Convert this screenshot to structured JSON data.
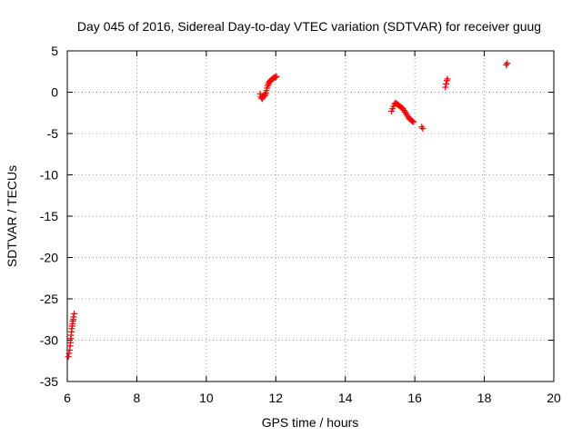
{
  "chart_data": {
    "type": "scatter",
    "title": "Day 045 of 2016, Sidereal Day-to-day VTEC variation (SDTVAR) for receiver guug",
    "xlabel": "GPS time / hours",
    "ylabel": "SDTVAR / TECUs",
    "xlim": [
      6,
      20
    ],
    "ylim": [
      -35,
      5
    ],
    "xticks": [
      6,
      8,
      10,
      12,
      14,
      16,
      18,
      20
    ],
    "yticks": [
      5,
      0,
      -5,
      -10,
      -15,
      -20,
      -25,
      -30,
      -35
    ],
    "xtick_labels": [
      "6",
      "8",
      "10",
      "12",
      "14",
      "16",
      "18",
      "20"
    ],
    "ytick_labels": [
      "5",
      "0",
      "-5",
      "-10",
      "-15",
      "-20",
      "-25",
      "-30",
      "-35"
    ],
    "grid": true,
    "grid_style": "dotted",
    "marker": "plus",
    "series": [
      {
        "color": "#ff0000",
        "x": [
          6.03,
          6.05,
          6.07,
          6.08,
          6.09,
          6.1,
          6.11,
          6.12,
          6.13,
          6.14,
          6.15,
          6.16,
          6.17,
          6.18,
          6.2,
          11.55,
          11.57,
          11.59,
          11.61,
          11.63,
          11.65,
          11.67,
          11.69,
          11.71,
          11.73,
          11.75,
          11.77,
          11.79,
          11.81,
          11.83,
          11.85,
          11.87,
          11.9,
          11.93,
          11.96,
          11.99,
          12.02,
          15.33,
          15.36,
          15.39,
          15.42,
          15.45,
          15.48,
          15.51,
          15.54,
          15.57,
          15.6,
          15.63,
          15.66,
          15.69,
          15.72,
          15.75,
          15.78,
          15.81,
          15.84,
          15.87,
          15.9,
          15.93,
          15.96,
          16.2,
          16.23,
          16.88,
          16.9,
          16.92,
          16.94,
          18.63,
          18.66
        ],
        "y": [
          -32.0,
          -31.6,
          -31.2,
          -30.7,
          -30.3,
          -29.8,
          -29.4,
          -29.0,
          -28.6,
          -28.3,
          -28.0,
          -27.7,
          -27.5,
          -27.2,
          -26.8,
          -0.2,
          -0.5,
          -0.7,
          -0.8,
          -0.6,
          -0.4,
          -0.5,
          -0.3,
          -0.1,
          0.2,
          0.5,
          0.8,
          1.0,
          1.2,
          1.3,
          1.4,
          1.5,
          1.6,
          1.7,
          1.8,
          1.8,
          1.9,
          -2.3,
          -2.0,
          -1.7,
          -1.4,
          -1.3,
          -1.4,
          -1.5,
          -1.6,
          -1.7,
          -1.8,
          -1.9,
          -2.0,
          -2.2,
          -2.4,
          -2.6,
          -2.8,
          -3.0,
          -3.2,
          -3.3,
          -3.4,
          -3.5,
          -3.6,
          -4.2,
          -4.4,
          0.6,
          1.0,
          1.4,
          1.6,
          3.3,
          3.5
        ]
      }
    ]
  }
}
